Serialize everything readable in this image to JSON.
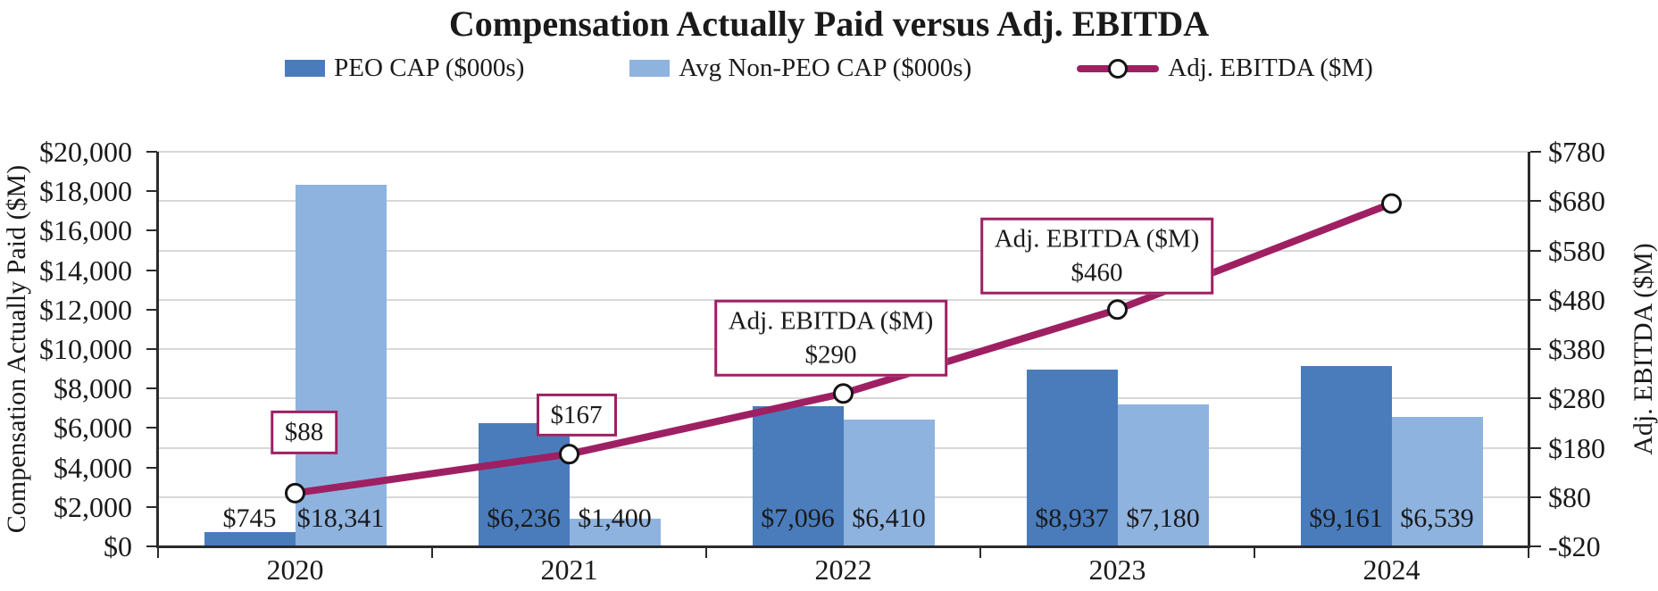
{
  "chart_data": {
    "type": "combo-bar-line",
    "title": "Compensation Actually Paid versus Adj. EBITDA",
    "categories": [
      "2020",
      "2021",
      "2022",
      "2023",
      "2024"
    ],
    "series": [
      {
        "name": "PEO CAP ($000s)",
        "type": "bar",
        "axis": "left",
        "color": "#4A7CBC",
        "values": [
          745,
          6236,
          7096,
          8937,
          9161
        ],
        "labels": [
          "$745",
          "$6,236",
          "$7,096",
          "$8,937",
          "$9,161"
        ]
      },
      {
        "name": "Avg Non-PEO CAP ($000s)",
        "type": "bar",
        "axis": "left",
        "color": "#8FB3DF",
        "values": [
          18341,
          1400,
          6410,
          7180,
          6539
        ],
        "labels": [
          "$18,341",
          "$1,400",
          "$6,410",
          "$7,180",
          "$6,539"
        ]
      },
      {
        "name": "Adj. EBITDA ($M)",
        "type": "line",
        "axis": "right",
        "color": "#9E2063",
        "values": [
          88,
          167,
          290,
          460,
          675
        ]
      }
    ],
    "callouts": [
      {
        "point_index": 0,
        "lines": [
          "$88"
        ]
      },
      {
        "point_index": 1,
        "lines": [
          "$167"
        ]
      },
      {
        "point_index": 2,
        "lines": [
          "Adj. EBITDA ($M)",
          "$290"
        ]
      },
      {
        "point_index": 3,
        "lines": [
          "Adj. EBITDA ($M)",
          "$460"
        ]
      }
    ],
    "left_axis": {
      "title": "Compensation Actually Paid ($M)",
      "min": 0,
      "max": 20000,
      "tick_step": 2000,
      "tick_labels": [
        "$0",
        "$2,000",
        "$4,000",
        "$6,000",
        "$8,000",
        "$10,000",
        "$12,000",
        "$14,000",
        "$16,000",
        "$18,000",
        "$20,000"
      ]
    },
    "right_axis": {
      "title": "Adj. EBITDA ($M)",
      "min": -20,
      "max": 780,
      "tick_step": 100,
      "tick_labels": [
        "-$20",
        "$80",
        "$180",
        "$280",
        "$380",
        "$480",
        "$580",
        "$680",
        "$780"
      ]
    },
    "legend": [
      {
        "label": "PEO CAP ($000s)",
        "swatch": "dark-blue-bar"
      },
      {
        "label": "Avg Non-PEO CAP ($000s)",
        "swatch": "light-blue-bar"
      },
      {
        "label": "Adj. EBITDA ($M)",
        "swatch": "line-with-open-circle-marker"
      }
    ],
    "grid": {
      "horizontal": true,
      "aligned_to": "right_axis"
    },
    "colors": {
      "peo_bar": "#4A7CBC",
      "non_peo_bar": "#8FB3DF",
      "ebitda_line": "#9E2063",
      "gridline": "#D8D8D8",
      "axis": "#2B2B2B",
      "text": "#1A1A1A",
      "callout_bg": "#FFFFFF"
    }
  }
}
